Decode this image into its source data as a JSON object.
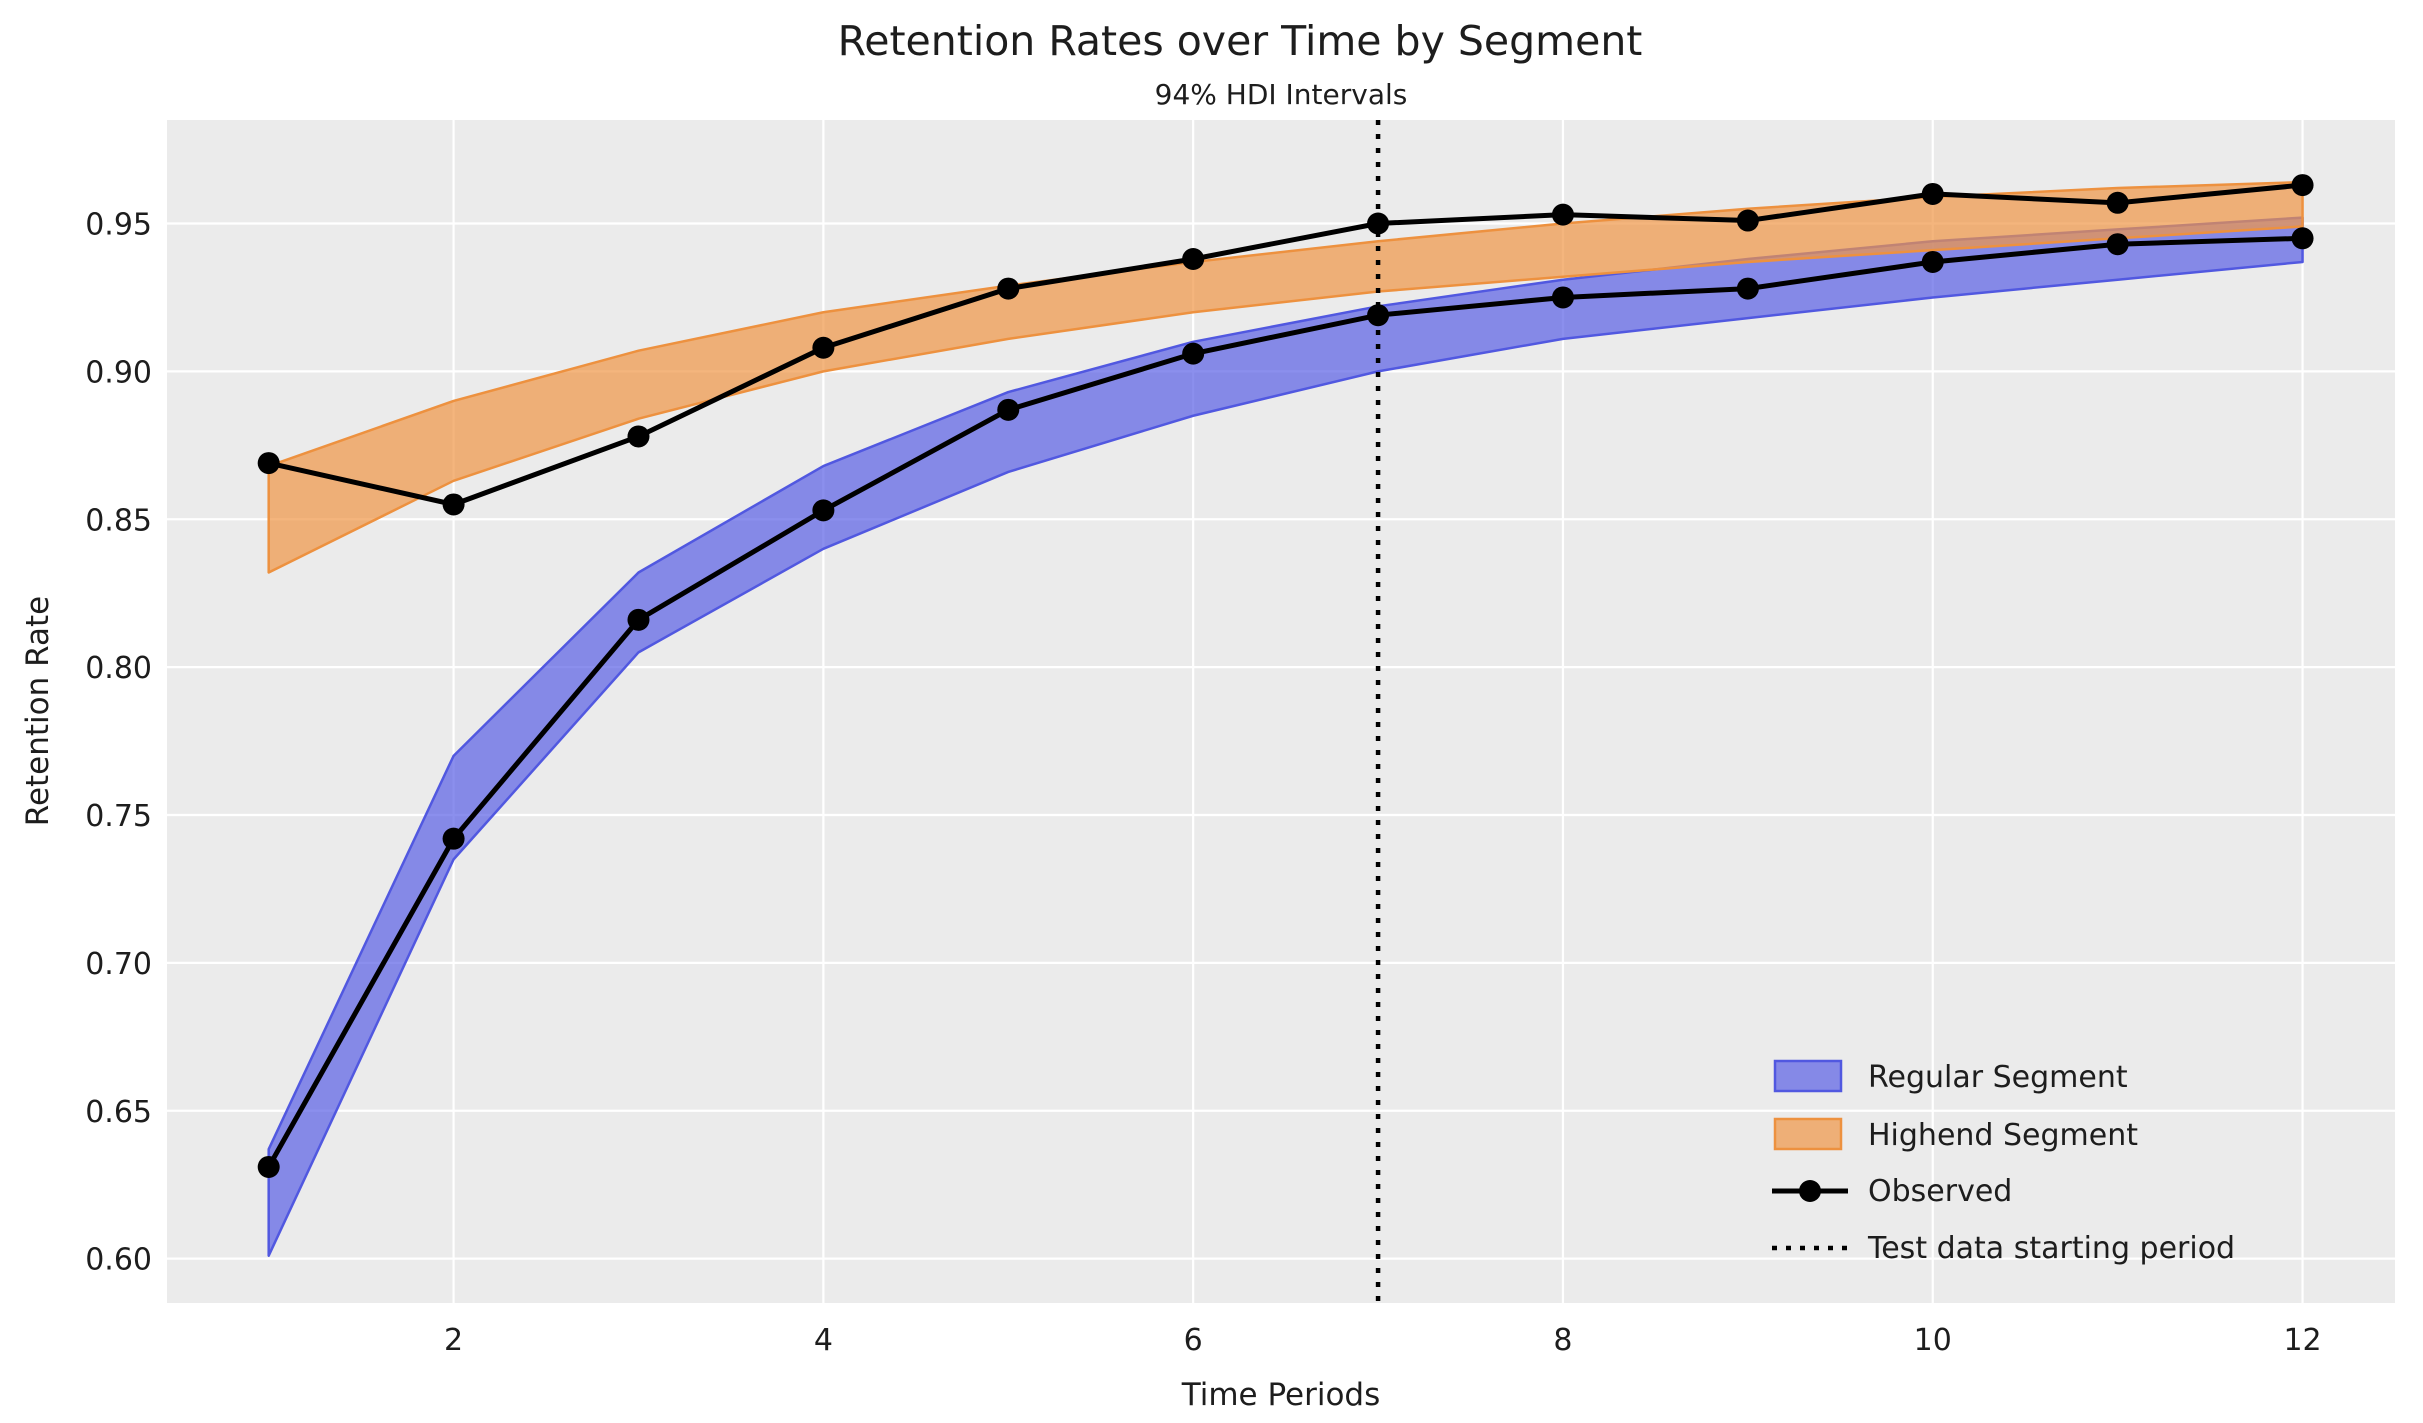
{
  "title": "Retention Rates over Time by Segment",
  "subtitle": "94% HDI Intervals",
  "xlabel": "Time Periods",
  "ylabel": "Retention Rate",
  "colors": {
    "figure_bg": "#ffffff",
    "plot_bg": "#ebebeb",
    "grid": "#ffffff",
    "regular_band_fill": "rgba(90,95,230,0.70)",
    "regular_band_edge": "#5158e0",
    "highend_band_fill": "rgba(240,150,70,0.70)",
    "highend_band_edge": "#ed913f",
    "observed_line": "#000000",
    "vline": "#000000",
    "text": "#1d1d1d"
  },
  "legend": {
    "position": "lower right",
    "items": [
      {
        "label": "Regular Segment",
        "type": "patch",
        "color": "rgba(90,95,230,0.70)",
        "edge": "#5158e0"
      },
      {
        "label": "Highend Segment",
        "type": "patch",
        "color": "rgba(240,150,70,0.70)",
        "edge": "#ed913f"
      },
      {
        "label": "Observed",
        "type": "line-marker",
        "color": "#000000"
      },
      {
        "label": "Test data starting period",
        "type": "dotted-line",
        "color": "#000000"
      }
    ]
  },
  "chart_data": {
    "type": "line",
    "title": "Retention Rates over Time by Segment",
    "subtitle": "94% HDI Intervals",
    "xlabel": "Time Periods",
    "ylabel": "Retention Rate",
    "grid": true,
    "xlim": [
      0.45,
      12.5
    ],
    "ylim": [
      0.585,
      0.985
    ],
    "xticks": [
      2,
      4,
      6,
      8,
      10,
      12
    ],
    "xtick_labels": [
      "2",
      "4",
      "6",
      "8",
      "10",
      "12"
    ],
    "yticks": [
      0.6,
      0.65,
      0.7,
      0.75,
      0.8,
      0.85,
      0.9,
      0.95
    ],
    "ytick_labels": [
      "0.60",
      "0.65",
      "0.70",
      "0.75",
      "0.80",
      "0.85",
      "0.90",
      "0.95"
    ],
    "x": [
      1,
      2,
      3,
      4,
      5,
      6,
      7,
      8,
      9,
      10,
      11,
      12
    ],
    "series": [
      {
        "name": "Regular Segment",
        "kind": "hdi-band",
        "lower": [
          0.601,
          0.735,
          0.805,
          0.84,
          0.866,
          0.885,
          0.9,
          0.911,
          0.918,
          0.925,
          0.931,
          0.937
        ],
        "upper": [
          0.637,
          0.77,
          0.832,
          0.868,
          0.893,
          0.91,
          0.922,
          0.931,
          0.938,
          0.944,
          0.948,
          0.952
        ]
      },
      {
        "name": "Highend Segment",
        "kind": "hdi-band",
        "lower": [
          0.832,
          0.863,
          0.884,
          0.9,
          0.911,
          0.92,
          0.927,
          0.932,
          0.937,
          0.941,
          0.945,
          0.949
        ],
        "upper": [
          0.868,
          0.89,
          0.907,
          0.92,
          0.929,
          0.937,
          0.944,
          0.95,
          0.955,
          0.959,
          0.962,
          0.964
        ]
      },
      {
        "name": "Observed (Regular)",
        "kind": "line-marker",
        "values": [
          0.631,
          0.742,
          0.816,
          0.853,
          0.887,
          0.906,
          0.919,
          0.925,
          0.928,
          0.937,
          0.943,
          0.945
        ]
      },
      {
        "name": "Observed (Highend)",
        "kind": "line-marker",
        "values": [
          0.869,
          0.855,
          0.878,
          0.908,
          0.928,
          0.938,
          0.95,
          0.953,
          0.951,
          0.96,
          0.957,
          0.963
        ]
      }
    ],
    "vline": {
      "x": 7,
      "label": "Test data starting period",
      "style": "dotted"
    },
    "legend_position": "lower right"
  }
}
